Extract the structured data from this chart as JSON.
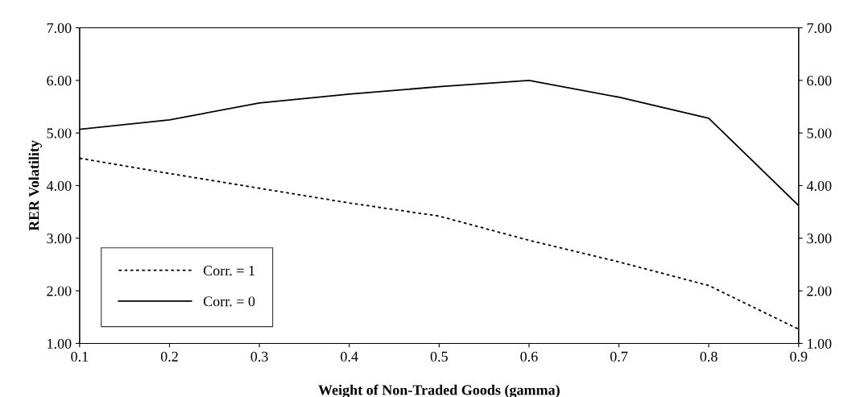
{
  "chart_data": {
    "type": "line",
    "xlabel": "Weight of Non-Traded Goods (gamma)",
    "ylabel": "RER Volatility",
    "x": [
      0.1,
      0.2,
      0.3,
      0.4,
      0.5,
      0.6,
      0.7,
      0.8,
      0.9
    ],
    "series": [
      {
        "name": "Corr. = 1",
        "color": "#000000",
        "line_style": "dotted",
        "values": [
          4.52,
          4.23,
          3.95,
          3.67,
          3.42,
          2.96,
          2.55,
          2.1,
          1.27
        ]
      },
      {
        "name": "Corr. = 0",
        "color": "#000000",
        "line_style": "solid",
        "values": [
          5.07,
          5.25,
          5.57,
          5.74,
          5.88,
          6.0,
          5.68,
          5.28,
          3.62
        ]
      }
    ],
    "xlim": [
      0.1,
      0.9
    ],
    "xticks": [
      0.1,
      0.2,
      0.3,
      0.4,
      0.5,
      0.6,
      0.7,
      0.8,
      0.9
    ],
    "ylim": [
      1,
      7
    ],
    "yticks": [
      {
        "value": 1,
        "label": "1.00"
      },
      {
        "value": 2,
        "label": "2.00"
      },
      {
        "value": 3,
        "label": "3.00"
      },
      {
        "value": 4,
        "label": "4.00"
      },
      {
        "value": 5,
        "label": "5.00"
      },
      {
        "value": 6,
        "label": "6.00"
      },
      {
        "value": 7,
        "label": "7.00"
      }
    ],
    "y2lim": [
      1,
      7
    ],
    "y2ticks": [
      {
        "value": 1,
        "label": "1.00"
      },
      {
        "value": 2,
        "label": "2.00"
      },
      {
        "value": 3,
        "label": "3.00"
      },
      {
        "value": 4,
        "label": "4.00"
      },
      {
        "value": 5,
        "label": "5.00"
      },
      {
        "value": 6,
        "label": "6.00"
      },
      {
        "value": 7,
        "label": "7.00"
      }
    ],
    "grid": false,
    "legend": "bottom left",
    "marker": "none"
  }
}
